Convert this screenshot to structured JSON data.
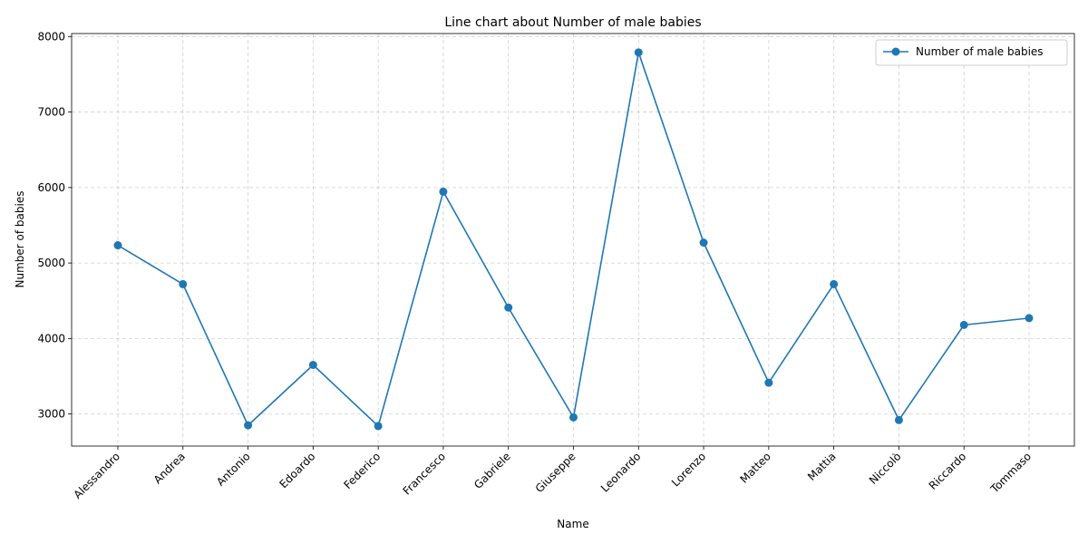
{
  "chart_data": {
    "type": "line",
    "title": "Line chart about Number of male babies",
    "xlabel": "Name",
    "ylabel": "Number of babies",
    "categories": [
      "Alessandro",
      "Andrea",
      "Antonio",
      "Edoardo",
      "Federico",
      "Francesco",
      "Gabriele",
      "Giuseppe",
      "Leonardo",
      "Lorenzo",
      "Matteo",
      "Mattia",
      "Niccolò",
      "Riccardo",
      "Tommaso"
    ],
    "series": [
      {
        "name": "Number of male babies",
        "values": [
          5235,
          4720,
          2850,
          3650,
          2840,
          5945,
          4410,
          2955,
          7790,
          5270,
          3415,
          4720,
          2920,
          4180,
          4270
        ],
        "color": "#1f77b4"
      }
    ],
    "ylim": [
      2575,
      8040
    ],
    "yticks": [
      3000,
      4000,
      5000,
      6000,
      7000,
      8000
    ],
    "grid": true,
    "legend_position": "top-right"
  }
}
